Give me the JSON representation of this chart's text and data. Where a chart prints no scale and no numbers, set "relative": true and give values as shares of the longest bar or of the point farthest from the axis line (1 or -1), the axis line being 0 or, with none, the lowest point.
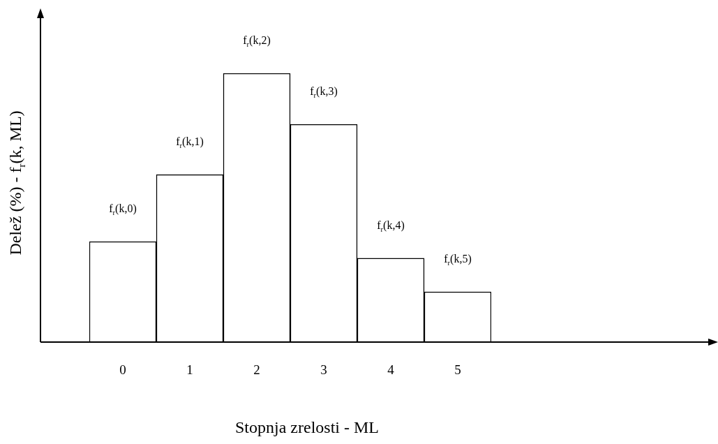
{
  "chart_data": {
    "type": "bar",
    "relative": true,
    "xlabel": "Stopnja zrelosti - ML",
    "ylabel": "Delež (%) - f$_{r}$(k, ML)",
    "categories": [
      "0",
      "1",
      "2",
      "3",
      "4",
      "5"
    ],
    "values": [
      0.374,
      0.623,
      1,
      0.81,
      0.312,
      0.187
    ],
    "annotations": [
      {
        "text": "f$_{r}$(k,0)",
        "x": "0",
        "y": 0.374
      },
      {
        "text": "f$_{r}$(k,1)",
        "x": "1",
        "y": 0.623
      },
      {
        "text": "f$_{r}$(k,2)",
        "x": "2",
        "y": 1
      },
      {
        "text": "f$_{r}$(k,3)",
        "x": "3",
        "y": 0.81
      },
      {
        "text": "f$_{r}$(k,4)",
        "x": "4",
        "y": 0.312
      },
      {
        "text": "f$_{r}$(k,5)",
        "x": "5",
        "y": 0.187
      }
    ],
    "color": "#ffffff"
  }
}
